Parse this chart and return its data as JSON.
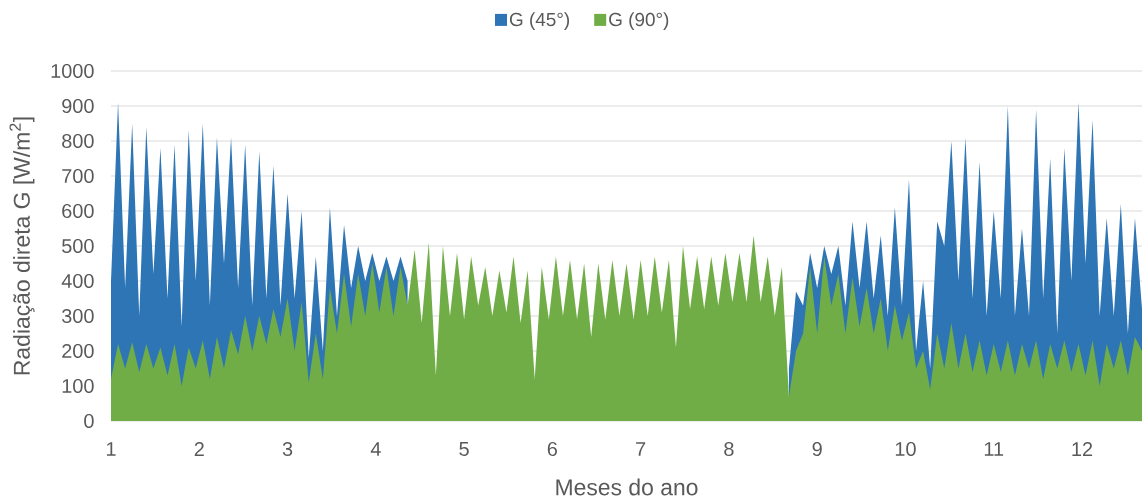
{
  "chart_data": {
    "type": "area",
    "xlabel": "Meses do ano",
    "ylabel": "Radiação direta G [W/m$^{2}$]",
    "x": [
      1,
      1.08,
      1.16,
      1.24,
      1.32,
      1.4,
      1.48,
      1.56,
      1.64,
      1.72,
      1.8,
      1.88,
      1.96,
      2.04,
      2.12,
      2.2,
      2.28,
      2.36,
      2.44,
      2.52,
      2.6,
      2.68,
      2.76,
      2.84,
      2.92,
      3,
      3.08,
      3.16,
      3.24,
      3.32,
      3.4,
      3.48,
      3.56,
      3.64,
      3.72,
      3.8,
      3.88,
      3.96,
      4.04,
      4.12,
      4.2,
      4.28,
      4.36,
      4.44,
      4.52,
      4.6,
      4.68,
      4.76,
      4.84,
      4.92,
      5,
      5.08,
      5.16,
      5.24,
      5.32,
      5.4,
      5.48,
      5.56,
      5.64,
      5.72,
      5.8,
      5.88,
      5.96,
      6.04,
      6.12,
      6.2,
      6.28,
      6.36,
      6.44,
      6.52,
      6.6,
      6.68,
      6.76,
      6.84,
      6.92,
      7,
      7.08,
      7.16,
      7.24,
      7.32,
      7.4,
      7.48,
      7.56,
      7.64,
      7.72,
      7.8,
      7.88,
      7.96,
      8.04,
      8.12,
      8.2,
      8.28,
      8.36,
      8.44,
      8.52,
      8.6,
      8.68,
      8.76,
      8.84,
      8.92,
      9,
      9.08,
      9.16,
      9.24,
      9.32,
      9.4,
      9.48,
      9.56,
      9.64,
      9.72,
      9.8,
      9.88,
      9.96,
      10.04,
      10.12,
      10.2,
      10.28,
      10.36,
      10.44,
      10.52,
      10.6,
      10.68,
      10.76,
      10.84,
      10.92,
      11,
      11.08,
      11.16,
      11.24,
      11.32,
      11.4,
      11.48,
      11.56,
      11.64,
      11.72,
      11.8,
      11.88,
      11.96,
      12.04,
      12.12,
      12.2,
      12.28,
      12.36,
      12.44,
      12.52,
      12.6,
      12.68
    ],
    "xlim": [
      1,
      12.68
    ],
    "xticks": [
      1,
      2,
      3,
      4,
      5,
      6,
      7,
      8,
      9,
      10,
      11,
      12
    ],
    "ylim": [
      0,
      1000
    ],
    "yticks": [
      0,
      100,
      200,
      300,
      400,
      500,
      600,
      700,
      800,
      900,
      1000
    ],
    "grid": "y",
    "legend": "top",
    "series": [
      {
        "name": "G (45°)",
        "color": "#2e75b6",
        "values": [
          400,
          910,
          380,
          850,
          300,
          840,
          420,
          780,
          350,
          790,
          270,
          830,
          400,
          850,
          330,
          810,
          450,
          810,
          380,
          790,
          330,
          770,
          350,
          730,
          330,
          650,
          350,
          600,
          180,
          470,
          200,
          610,
          300,
          560,
          380,
          500,
          400,
          480,
          400,
          470,
          400,
          470,
          400,
          null,
          null,
          null,
          null,
          null,
          null,
          null,
          null,
          null,
          null,
          null,
          null,
          null,
          null,
          null,
          null,
          null,
          null,
          null,
          null,
          null,
          null,
          null,
          null,
          null,
          null,
          null,
          null,
          null,
          null,
          null,
          null,
          null,
          null,
          null,
          null,
          null,
          null,
          null,
          null,
          null,
          null,
          null,
          null,
          null,
          null,
          null,
          null,
          null,
          null,
          null,
          null,
          null,
          150,
          370,
          330,
          480,
          380,
          500,
          420,
          500,
          330,
          570,
          380,
          570,
          350,
          530,
          300,
          610,
          330,
          690,
          200,
          400,
          150,
          570,
          500,
          800,
          400,
          810,
          350,
          740,
          300,
          600,
          350,
          900,
          300,
          550,
          300,
          890,
          350,
          750,
          250,
          780,
          400,
          910,
          450,
          860,
          300,
          580,
          300,
          620,
          250,
          580,
          320
        ]
      },
      {
        "name": "G (90°)",
        "color": "#70ad47",
        "values": [
          120,
          220,
          150,
          225,
          140,
          220,
          150,
          210,
          130,
          220,
          100,
          210,
          150,
          230,
          120,
          240,
          150,
          260,
          190,
          300,
          200,
          300,
          220,
          320,
          240,
          350,
          200,
          340,
          110,
          250,
          120,
          380,
          250,
          420,
          270,
          420,
          300,
          450,
          310,
          440,
          300,
          440,
          330,
          490,
          280,
          510,
          130,
          500,
          300,
          480,
          290,
          470,
          330,
          440,
          300,
          430,
          310,
          470,
          280,
          430,
          120,
          440,
          290,
          470,
          300,
          460,
          290,
          450,
          240,
          450,
          290,
          460,
          300,
          450,
          290,
          460,
          300,
          470,
          310,
          460,
          210,
          500,
          320,
          470,
          320,
          470,
          330,
          480,
          340,
          480,
          340,
          530,
          340,
          470,
          300,
          440,
          70,
          200,
          250,
          440,
          250,
          470,
          330,
          420,
          250,
          410,
          270,
          380,
          250,
          350,
          200,
          330,
          230,
          310,
          150,
          200,
          90,
          250,
          150,
          280,
          150,
          250,
          140,
          230,
          130,
          220,
          140,
          230,
          130,
          220,
          150,
          230,
          120,
          220,
          150,
          230,
          140,
          220,
          130,
          230,
          100,
          220,
          150,
          230,
          130,
          240,
          200
        ]
      }
    ]
  }
}
